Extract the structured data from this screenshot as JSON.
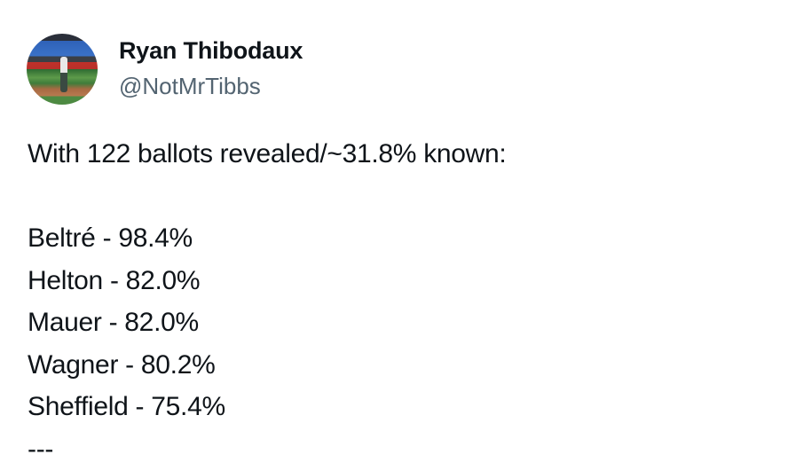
{
  "author": {
    "name": "Ryan Thibodaux",
    "handle": "@NotMrTibbs",
    "avatar_icon": "baseball-stadium-photo"
  },
  "tweet": {
    "intro": "With 122 ballots revealed/~31.8% known:",
    "results": [
      "Beltré - 98.4%",
      "Helton - 82.0%",
      "Mauer - 82.0%",
      "Wagner - 80.2%",
      "Sheffield - 75.4%"
    ],
    "separator": "---"
  }
}
